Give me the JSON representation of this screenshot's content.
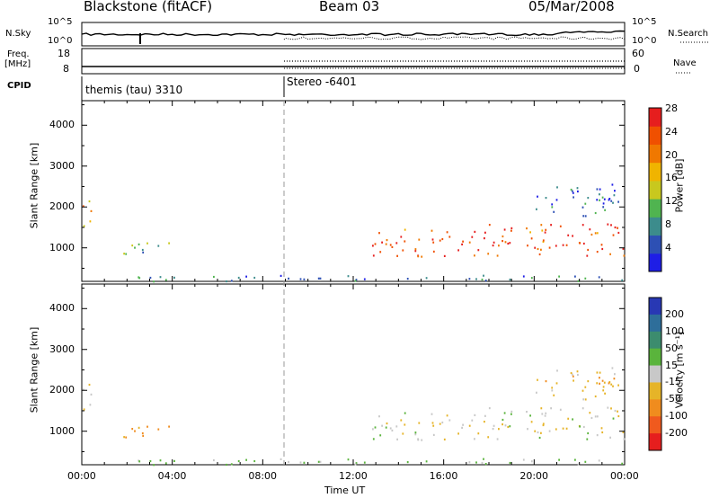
{
  "header": {
    "station": "Blackstone (fitACF)",
    "beam": "Beam 03",
    "date": "05/Mar/2008"
  },
  "top_panel": {
    "left_labels": [
      "N.Sky",
      "Freq.",
      "[MHz]",
      "CPID"
    ],
    "right_labels": [
      "N.Search",
      "Nave"
    ],
    "noise_ticks": [
      "10^5",
      "10^0"
    ],
    "freq_ticks": [
      "18",
      "8"
    ],
    "nave_ticks": [
      "60",
      "0"
    ],
    "cpid_segments": [
      {
        "label": "themis (tau) 3310",
        "start_hour": 0.0
      },
      {
        "label": "Stereo -6401",
        "start_hour": 9.0
      }
    ]
  },
  "time_axis": {
    "label": "Time UT",
    "ticks": [
      "00:00",
      "04:00",
      "08:00",
      "12:00",
      "16:00",
      "20:00",
      "00:00"
    ],
    "range_hours": [
      0,
      24
    ]
  },
  "range_axis": {
    "label": "Slant Range [km]",
    "ticks": [
      "1000",
      "2000",
      "3000",
      "4000"
    ],
    "range_km": [
      180,
      4600
    ]
  },
  "power_scale": {
    "label": "Power [dB]",
    "ticks": [
      "4",
      "8",
      "12",
      "16",
      "20",
      "24",
      "28"
    ],
    "colors": [
      "#1e1ee6",
      "#2d50b4",
      "#3c8c8c",
      "#50b450",
      "#c8c81e",
      "#f0b400",
      "#f07800",
      "#f05000",
      "#e61e1e"
    ]
  },
  "velocity_scale": {
    "label": "Velocity [m s⁻¹]",
    "ticks": [
      "200",
      "100",
      "50",
      "15",
      "-15",
      "-50",
      "-100",
      "-200"
    ],
    "colors": [
      "#2838b4",
      "#2e6e9a",
      "#3c8c6e",
      "#5ab43c",
      "#c8c8c8",
      "#e6b428",
      "#f08c1e",
      "#f05a1e",
      "#e61e1e"
    ]
  },
  "chart_data": {
    "type": "heatmap",
    "x_unit": "hours UT",
    "y_unit": "km",
    "scatter_regions": [
      {
        "name": "early-band",
        "t": [
          0.0,
          0.5
        ],
        "r": [
          1500,
          2200
        ],
        "power_dB": 20,
        "velocity": -20
      },
      {
        "name": "morning-patch",
        "t": [
          1.6,
          4.2
        ],
        "r": [
          800,
          1150
        ],
        "power_dB": 10,
        "velocity": -60
      },
      {
        "name": "near-range",
        "t": [
          2.0,
          24.0
        ],
        "r": [
          200,
          350
        ],
        "power_dB": 8,
        "velocity": 20
      },
      {
        "name": "main-echo",
        "t": [
          12.8,
          24.0
        ],
        "r": [
          800,
          1600
        ],
        "power_dB": 26,
        "velocity": 0
      },
      {
        "name": "afternoon-upper",
        "t": [
          20.0,
          23.8
        ],
        "r": [
          1800,
          2600
        ],
        "power_dB": 6,
        "velocity": -30
      }
    ]
  }
}
